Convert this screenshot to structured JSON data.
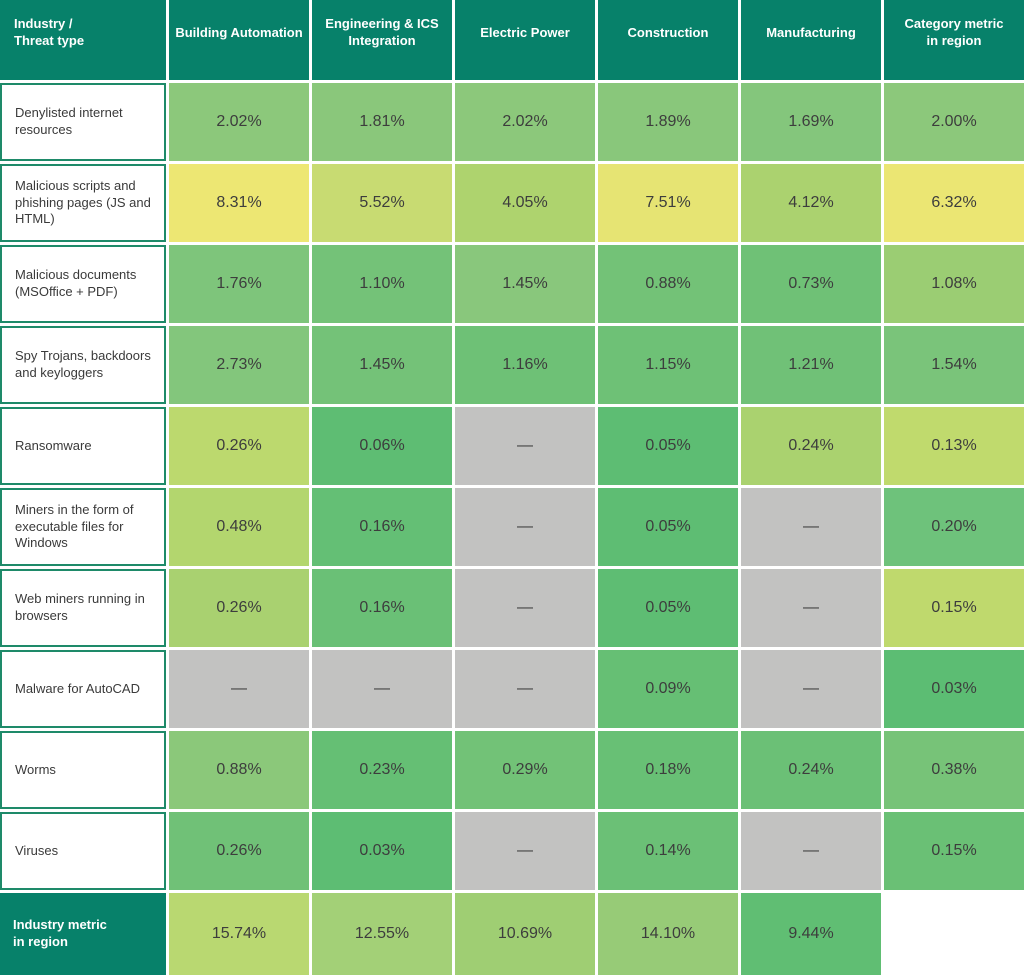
{
  "palette": {
    "header_bg": "#07816a",
    "header_text": "#ffffff",
    "label_border": "#1e8a69",
    "label_text": "#3a3a3a",
    "value_text": "#3d3d3d",
    "missing_bg": "#c2c2c1",
    "background": "#ffffff"
  },
  "header": {
    "corner": "Industry /\nThreat type",
    "columns": [
      "Building Automation",
      "Engineering & ICS\nIntegration",
      "Electric Power",
      "Construction",
      "Manufacturing",
      "Category metric\nin region"
    ]
  },
  "missing_marker": "—",
  "rows": [
    {
      "label": "Denylisted internet\nresources",
      "cells": [
        {
          "text": "2.02%",
          "bg": "#8cc87b"
        },
        {
          "text": "1.81%",
          "bg": "#8ac77b"
        },
        {
          "text": "2.02%",
          "bg": "#8cc87b"
        },
        {
          "text": "1.89%",
          "bg": "#89c77b"
        },
        {
          "text": "1.69%",
          "bg": "#84c67c"
        },
        {
          "text": "2.00%",
          "bg": "#8cc87b"
        }
      ]
    },
    {
      "label": "Malicious scripts and\nphishing pages (JS and\nHTML)",
      "cells": [
        {
          "text": "8.31%",
          "bg": "#ede773"
        },
        {
          "text": "5.52%",
          "bg": "#c8db72"
        },
        {
          "text": "4.05%",
          "bg": "#aed36e"
        },
        {
          "text": "7.51%",
          "bg": "#e6e473"
        },
        {
          "text": "4.12%",
          "bg": "#abd26f"
        },
        {
          "text": "6.32%",
          "bg": "#ebe673"
        }
      ]
    },
    {
      "label": "Malicious documents\n(MSOffice + PDF)",
      "cells": [
        {
          "text": "1.76%",
          "bg": "#7ec57b"
        },
        {
          "text": "1.10%",
          "bg": "#74c278"
        },
        {
          "text": "1.45%",
          "bg": "#89c77c"
        },
        {
          "text": "0.88%",
          "bg": "#73c277"
        },
        {
          "text": "0.73%",
          "bg": "#6fc176"
        },
        {
          "text": "1.08%",
          "bg": "#9bcd73"
        }
      ]
    },
    {
      "label": "Spy Trojans, backdoors\nand keyloggers",
      "cells": [
        {
          "text": "2.73%",
          "bg": "#83c67c"
        },
        {
          "text": "1.45%",
          "bg": "#74c278"
        },
        {
          "text": "1.16%",
          "bg": "#6ec176"
        },
        {
          "text": "1.15%",
          "bg": "#6ec176"
        },
        {
          "text": "1.21%",
          "bg": "#70c177"
        },
        {
          "text": "1.54%",
          "bg": "#7ac47a"
        }
      ]
    },
    {
      "label": "Ransomware",
      "cells": [
        {
          "text": "0.26%",
          "bg": "#bcd96e"
        },
        {
          "text": "0.06%",
          "bg": "#5ebd73"
        },
        {
          "text": "—",
          "bg": "#c2c2c1"
        },
        {
          "text": "0.05%",
          "bg": "#5dbd73"
        },
        {
          "text": "0.24%",
          "bg": "#aad26f"
        },
        {
          "text": "0.13%",
          "bg": "#c0da6d"
        }
      ]
    },
    {
      "label": "Miners in the form of\nexecutable files for\nWindows",
      "cells": [
        {
          "text": "0.48%",
          "bg": "#b3d66e"
        },
        {
          "text": "0.16%",
          "bg": "#64bf75"
        },
        {
          "text": "—",
          "bg": "#c2c2c1"
        },
        {
          "text": "0.05%",
          "bg": "#5ebd73"
        },
        {
          "text": "—",
          "bg": "#c2c2c1"
        },
        {
          "text": "0.20%",
          "bg": "#6ec27b"
        }
      ]
    },
    {
      "label": "Web miners running in\nbrowsers",
      "cells": [
        {
          "text": "0.26%",
          "bg": "#a9d170"
        },
        {
          "text": "0.16%",
          "bg": "#6ac076"
        },
        {
          "text": "—",
          "bg": "#c2c2c1"
        },
        {
          "text": "0.05%",
          "bg": "#5ebd73"
        },
        {
          "text": "—",
          "bg": "#c2c2c1"
        },
        {
          "text": "0.15%",
          "bg": "#bfd96d"
        }
      ]
    },
    {
      "label": "Malware for AutoCAD",
      "cells": [
        {
          "text": "—",
          "bg": "#c2c2c1"
        },
        {
          "text": "—",
          "bg": "#c2c2c1"
        },
        {
          "text": "—",
          "bg": "#c2c2c1"
        },
        {
          "text": "0.09%",
          "bg": "#66bf74"
        },
        {
          "text": "—",
          "bg": "#c2c2c1"
        },
        {
          "text": "0.03%",
          "bg": "#5cbd73"
        }
      ]
    },
    {
      "label": "Worms",
      "cells": [
        {
          "text": "0.88%",
          "bg": "#8bc87a"
        },
        {
          "text": "0.23%",
          "bg": "#65bf74"
        },
        {
          "text": "0.29%",
          "bg": "#72c277"
        },
        {
          "text": "0.18%",
          "bg": "#68c075"
        },
        {
          "text": "0.24%",
          "bg": "#6bc076"
        },
        {
          "text": "0.38%",
          "bg": "#77c378"
        }
      ]
    },
    {
      "label": "Viruses",
      "cells": [
        {
          "text": "0.26%",
          "bg": "#70c177"
        },
        {
          "text": "0.03%",
          "bg": "#5dbd73"
        },
        {
          "text": "—",
          "bg": "#c2c2c1"
        },
        {
          "text": "0.14%",
          "bg": "#6bc076"
        },
        {
          "text": "—",
          "bg": "#c2c2c1"
        },
        {
          "text": "0.15%",
          "bg": "#6ac075"
        }
      ]
    }
  ],
  "footer": {
    "label": "Industry metric\nin region",
    "cells": [
      {
        "text": "15.74%",
        "bg": "#b9d871"
      },
      {
        "text": "12.55%",
        "bg": "#a3d077"
      },
      {
        "text": "10.69%",
        "bg": "#9fce73"
      },
      {
        "text": "14.10%",
        "bg": "#97cb77"
      },
      {
        "text": "9.44%",
        "bg": "#60be73"
      },
      {
        "text": "",
        "bg": "#ffffff"
      }
    ]
  },
  "chart_data": {
    "type": "heatmap",
    "title": "",
    "units": "%",
    "columns": [
      "Building Automation",
      "Engineering & ICS Integration",
      "Electric Power",
      "Construction",
      "Manufacturing",
      "Category metric in region"
    ],
    "row_labels": [
      "Denylisted internet resources",
      "Malicious scripts and phishing pages (JS and HTML)",
      "Malicious documents (MSOffice + PDF)",
      "Spy Trojans, backdoors and keyloggers",
      "Ransomware",
      "Miners in the form of executable files for Windows",
      "Web miners running in browsers",
      "Malware for AutoCAD",
      "Worms",
      "Viruses",
      "Industry metric in region"
    ],
    "values": [
      [
        2.02,
        1.81,
        2.02,
        1.89,
        1.69,
        2.0
      ],
      [
        8.31,
        5.52,
        4.05,
        7.51,
        4.12,
        6.32
      ],
      [
        1.76,
        1.1,
        1.45,
        0.88,
        0.73,
        1.08
      ],
      [
        2.73,
        1.45,
        1.16,
        1.15,
        1.21,
        1.54
      ],
      [
        0.26,
        0.06,
        null,
        0.05,
        0.24,
        0.13
      ],
      [
        0.48,
        0.16,
        null,
        0.05,
        null,
        0.2
      ],
      [
        0.26,
        0.16,
        null,
        0.05,
        null,
        0.15
      ],
      [
        null,
        null,
        null,
        0.09,
        null,
        0.03
      ],
      [
        0.88,
        0.23,
        0.29,
        0.18,
        0.24,
        0.38
      ],
      [
        0.26,
        0.03,
        null,
        0.14,
        null,
        0.15
      ],
      [
        15.74,
        12.55,
        10.69,
        14.1,
        9.44,
        null
      ]
    ],
    "missing_marker": "—",
    "color_scale": "green (low) to yellow (high), gray for missing",
    "layout": {
      "grid": "white 3px gaps",
      "legend": "none",
      "bottom_right_cell": "blank"
    }
  }
}
